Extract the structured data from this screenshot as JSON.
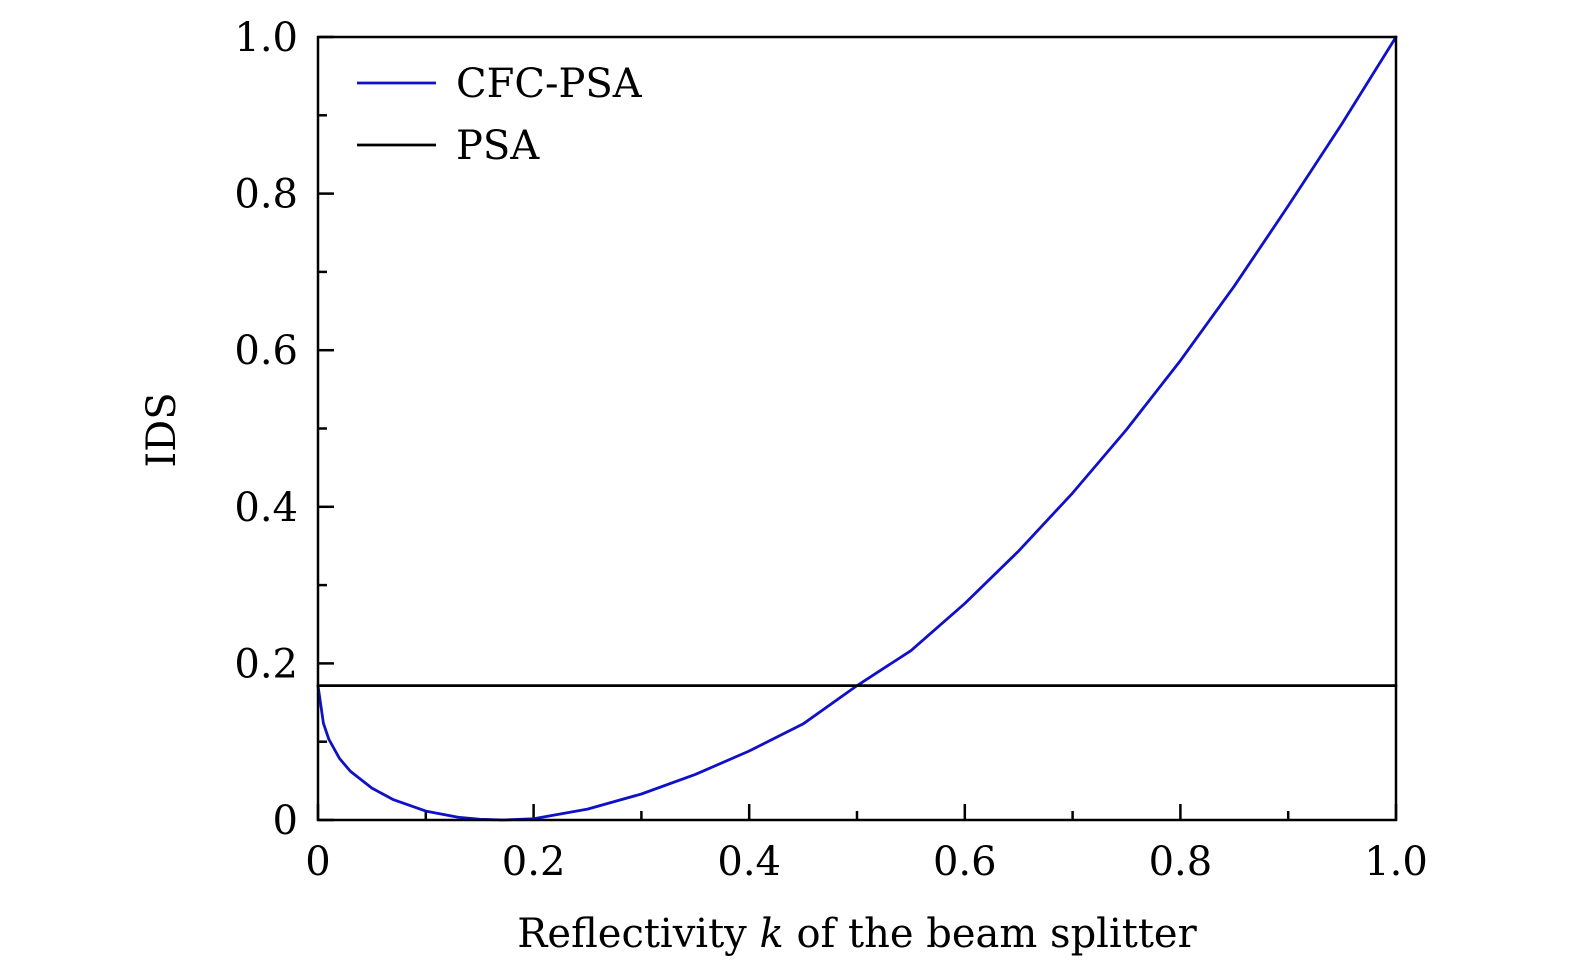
{
  "chart_data": {
    "type": "line",
    "title": "",
    "xlabel_parts": [
      "Reflectivity ",
      "k",
      " of the beam splitter"
    ],
    "ylabel": "IDS",
    "xlim": [
      0,
      1.0
    ],
    "ylim": [
      0,
      1.0
    ],
    "x_ticks": [
      {
        "value": 0,
        "label": "0"
      },
      {
        "value": 0.2,
        "label": "0.2"
      },
      {
        "value": 0.4,
        "label": "0.4"
      },
      {
        "value": 0.6,
        "label": "0.6"
      },
      {
        "value": 0.8,
        "label": "0.8"
      },
      {
        "value": 1.0,
        "label": "1.0"
      }
    ],
    "y_ticks": [
      {
        "value": 0,
        "label": "0"
      },
      {
        "value": 0.2,
        "label": "0.2"
      },
      {
        "value": 0.4,
        "label": "0.4"
      },
      {
        "value": 0.6,
        "label": "0.6"
      },
      {
        "value": 0.8,
        "label": "0.8"
      },
      {
        "value": 1.0,
        "label": "1.0"
      }
    ],
    "x_minor_ticks": [
      0.1,
      0.3,
      0.5,
      0.7,
      0.9
    ],
    "y_minor_ticks": [
      0.1,
      0.3,
      0.5,
      0.7,
      0.9
    ],
    "grid": false,
    "legend_position": "top-left",
    "series": [
      {
        "name": "CFC-PSA",
        "color": "#1010c8",
        "x": [
          0,
          0.005,
          0.01,
          0.02,
          0.03,
          0.05,
          0.07,
          0.1,
          0.13,
          0.15,
          0.1716,
          0.2,
          0.25,
          0.3,
          0.35,
          0.4,
          0.45,
          0.5,
          0.55,
          0.6,
          0.65,
          0.7,
          0.75,
          0.8,
          0.85,
          0.9,
          0.95,
          1.0
        ],
        "y": [
          0.1716,
          0.1236,
          0.1033,
          0.0785,
          0.0623,
          0.0407,
          0.0259,
          0.0114,
          0.0035,
          0.001,
          0,
          0.0016,
          0.0139,
          0.0332,
          0.0582,
          0.0881,
          0.1227,
          0.1716,
          0.2163,
          0.2765,
          0.3436,
          0.4176,
          0.4986,
          0.5867,
          0.6819,
          0.7843,
          0.8895,
          1.0
        ]
      },
      {
        "name": "PSA",
        "color": "#000000",
        "x": [
          0,
          1.0
        ],
        "y": [
          0.1716,
          0.1716
        ]
      }
    ]
  }
}
